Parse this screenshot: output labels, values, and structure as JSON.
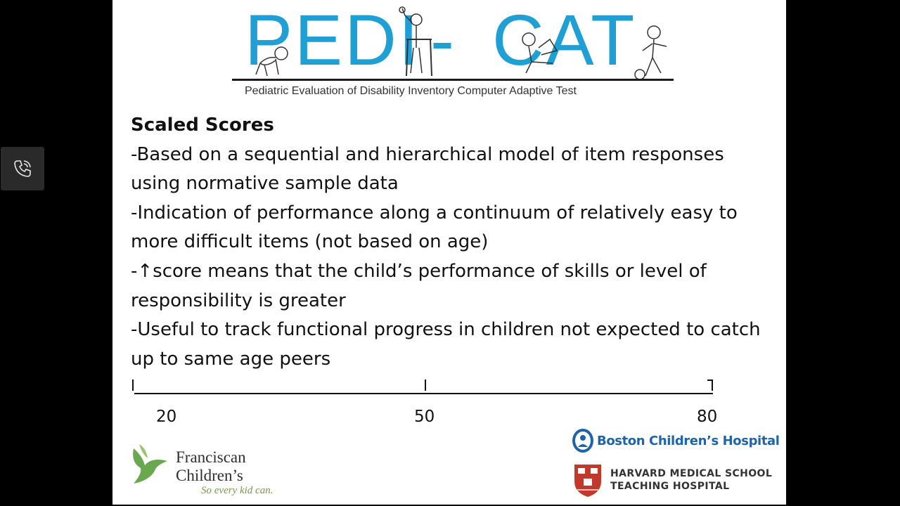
{
  "sidebar": {
    "call_button_icon": "phone-call-icon"
  },
  "banner": {
    "title_left": "PEDI",
    "title_right": "CAT",
    "dash": "-",
    "subtitle": "Pediatric Evaluation of Disability Inventory Computer Adaptive Test",
    "title_color": "#1f9fd3"
  },
  "content": {
    "heading": "Scaled Scores",
    "bullets": [
      "-Based on a sequential and hierarchical model of item responses using normative sample data",
      "-Indication of performance along a continuum of relatively easy to more difficult items (not based on age)",
      "-↑score means that the child’s performance of skills or level of responsibility is greater",
      "-Useful to track functional progress in children not expected to catch up to same age peers"
    ]
  },
  "scale": {
    "labels": [
      "20",
      "50",
      "80"
    ]
  },
  "logos": {
    "franciscan": {
      "line1": "Franciscan",
      "line2": "Children’s",
      "tagline": "So every kid can.",
      "color": "#6aa84f"
    },
    "boston": {
      "name": "Boston Children’s Hospital",
      "color": "#1f63a8"
    },
    "harvard": {
      "line1": "HARVARD MEDICAL SCHOOL",
      "line2": "TEACHING HOSPITAL",
      "shield_color": "#c0392b"
    }
  }
}
